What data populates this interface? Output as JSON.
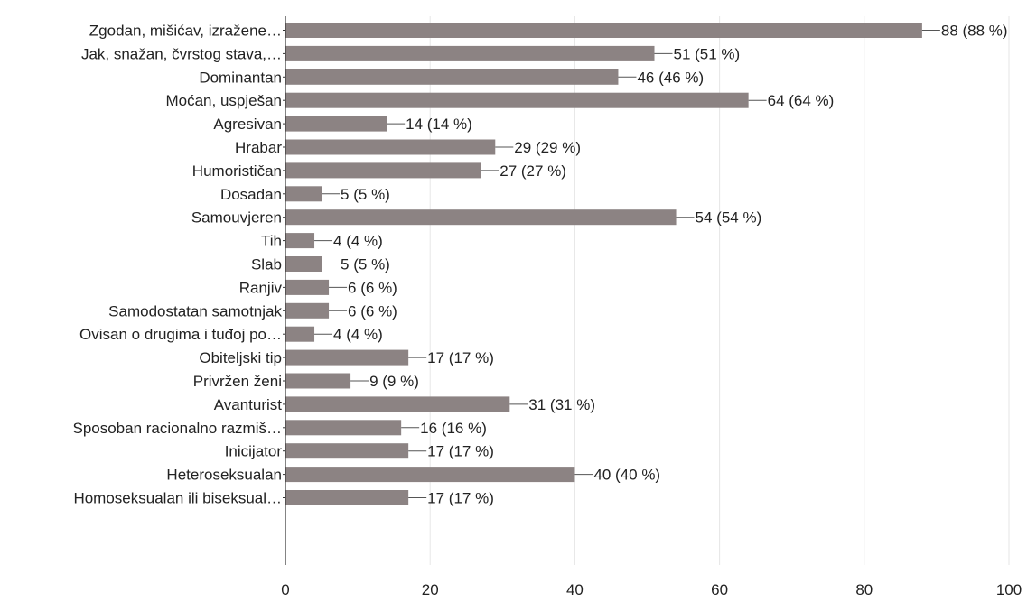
{
  "chart_data": {
    "type": "bar",
    "orientation": "horizontal",
    "categories": [
      "Zgodan, mišićav, izražene…",
      "Jak, snažan, čvrstog stava,…",
      "Dominantan",
      "Moćan, uspješan",
      "Agresivan",
      "Hrabar",
      "Humorističan",
      "Dosadan",
      "Samouvjeren",
      "Tih",
      "Slab",
      "Ranjiv",
      "Samodostatan samotnjak",
      "Ovisan o drugima i tuđoj po…",
      "Obiteljski tip",
      "Privržen ženi",
      "Avanturist",
      "Sposoban racionalno razmiš…",
      "Inicijator",
      "Heteroseksualan",
      "Homoseksualan ili biseksual…"
    ],
    "values": [
      88,
      51,
      46,
      64,
      14,
      29,
      27,
      5,
      54,
      4,
      5,
      6,
      6,
      4,
      17,
      9,
      31,
      16,
      17,
      40,
      17
    ],
    "data_labels": [
      "88 (88 %)",
      "51 (51 %)",
      "46 (46 %)",
      "64 (64 %)",
      "14 (14 %)",
      "29 (29 %)",
      "27 (27 %)",
      "5 (5 %)",
      "54 (54 %)",
      "4 (4 %)",
      "5 (5 %)",
      "6 (6 %)",
      "6 (6 %)",
      "4 (4 %)",
      "17 (17 %)",
      "9 (9 %)",
      "31 (31 %)",
      "16 (16 %)",
      "17 (17 %)",
      "40 (40 %)",
      "17 (17 %)"
    ],
    "xticks": [
      "0",
      "20",
      "40",
      "60",
      "80",
      "100"
    ],
    "xlim": [
      0,
      100
    ],
    "title": "",
    "xlabel": "",
    "ylabel": "",
    "grid": true,
    "colors": {
      "bar": "#8c8383",
      "grid": "#e6e6e6",
      "axis": "#333333",
      "text": "#222222"
    }
  }
}
